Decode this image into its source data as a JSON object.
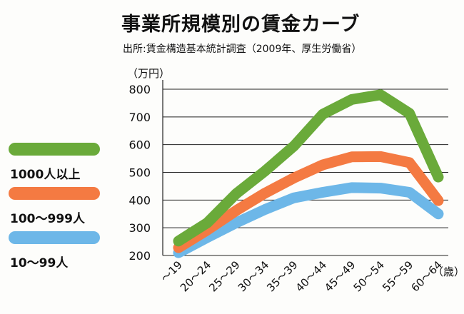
{
  "header": {
    "title": "事業所規模別の賃金カーブ",
    "source": "出所:賃金構造基本統計調査（2009年、厚生労働省）",
    "unit": "（万円）"
  },
  "colors": {
    "large": "#6aaa3a",
    "medium": "#f47a42",
    "small": "#6db7e8"
  },
  "chart_data": {
    "type": "line",
    "title": "事業所規模別の賃金カーブ",
    "ylabel": "（万円）",
    "xlabel": "（歳）",
    "ylim": [
      200,
      800
    ],
    "yticks": [
      200,
      300,
      400,
      500,
      600,
      700,
      800
    ],
    "grid": true,
    "legend_position": "left",
    "categories": [
      "～19",
      "20～24",
      "25～29",
      "30～34",
      "35～39",
      "40～44",
      "45～49",
      "50～54",
      "55～59",
      "60～64"
    ],
    "series": [
      {
        "name": "1000人以上",
        "color": "#6aaa3a",
        "values": [
          252,
          318,
          423,
          505,
          595,
          710,
          763,
          780,
          713,
          483
        ]
      },
      {
        "name": "100～999人",
        "color": "#f47a42",
        "values": [
          228,
          292,
          362,
          425,
          480,
          527,
          556,
          557,
          535,
          398
        ]
      },
      {
        "name": "10～99人",
        "color": "#6db7e8",
        "values": [
          210,
          265,
          318,
          366,
          408,
          428,
          445,
          443,
          428,
          350
        ]
      }
    ]
  }
}
